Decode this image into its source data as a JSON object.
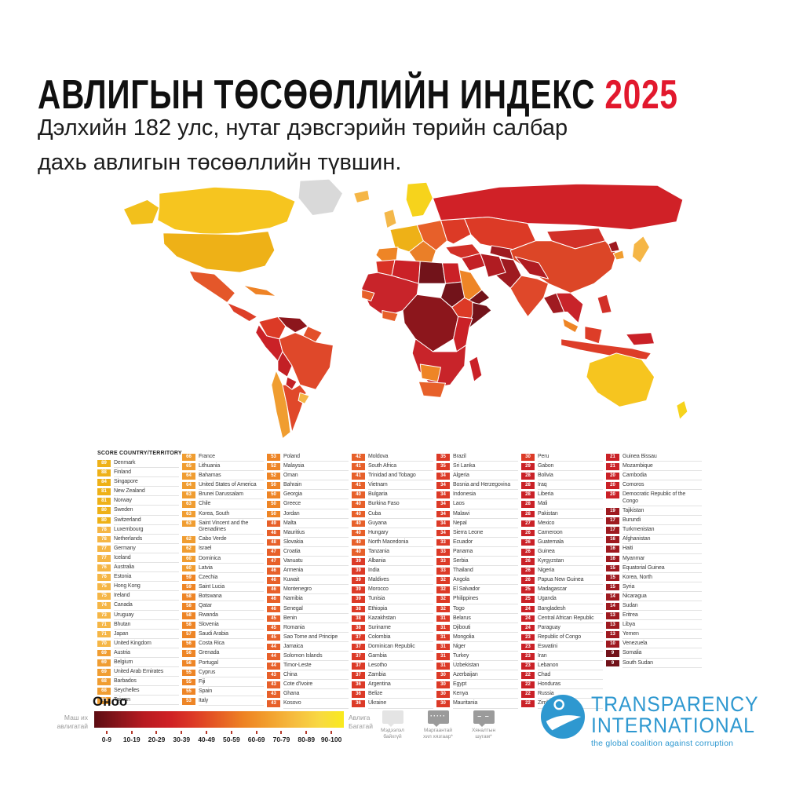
{
  "title": {
    "main": "АВЛИГЫН ТӨСӨӨЛЛИЙН ИНДЕКС",
    "year": "2025",
    "year_color": "#e2182d"
  },
  "subtitle": {
    "line1": "Дэлхийн 182 улс, нутаг дэвсгэрийн төрийн салбар",
    "line2": "дахь авлигын төсөөллийн түвшин."
  },
  "table": {
    "header": {
      "score": "SCORE",
      "country": "COUNTRY/TERRITORY"
    }
  },
  "chart_data": {
    "type": "table",
    "title": "АВЛИГЫН ТӨСӨӨЛЛИЙН ИНДЕКС 2025",
    "description": "Corruption Perceptions Index choropleth world map and score table, 182 countries, scale 0 (highly corrupt, dark red) to 100 (clean, yellow)",
    "score_range": [
      0,
      100
    ],
    "columns": [
      [
        {
          "s": 89,
          "c": "Denmark"
        },
        {
          "s": 88,
          "c": "Finland"
        },
        {
          "s": 84,
          "c": "Singapore"
        },
        {
          "s": 81,
          "c": "New Zealand"
        },
        {
          "s": 81,
          "c": "Norway"
        },
        {
          "s": 80,
          "c": "Sweden"
        },
        {
          "s": 80,
          "c": "Switzerland"
        },
        {
          "s": 78,
          "c": "Luxembourg"
        },
        {
          "s": 78,
          "c": "Netherlands"
        },
        {
          "s": 77,
          "c": "Germany"
        },
        {
          "s": 77,
          "c": "Iceland"
        },
        {
          "s": 76,
          "c": "Australia"
        },
        {
          "s": 76,
          "c": "Estonia"
        },
        {
          "s": 75,
          "c": "Hong Kong"
        },
        {
          "s": 75,
          "c": "Ireland"
        },
        {
          "s": 74,
          "c": "Canada"
        },
        {
          "s": 73,
          "c": "Uruguay"
        },
        {
          "s": 71,
          "c": "Bhutan"
        },
        {
          "s": 71,
          "c": "Japan"
        },
        {
          "s": 70,
          "c": "United Kingdom"
        },
        {
          "s": 69,
          "c": "Austria"
        },
        {
          "s": 69,
          "c": "Belgium"
        },
        {
          "s": 69,
          "c": "United Arab Emirates"
        },
        {
          "s": 68,
          "c": "Barbados"
        },
        {
          "s": 68,
          "c": "Seychelles"
        },
        {
          "s": 68,
          "c": "Taiwan"
        }
      ],
      [
        {
          "s": 66,
          "c": "France"
        },
        {
          "s": 65,
          "c": "Lithuania"
        },
        {
          "s": 64,
          "c": "Bahamas"
        },
        {
          "s": 64,
          "c": "United States of America"
        },
        {
          "s": 63,
          "c": "Brunei Darussalam"
        },
        {
          "s": 63,
          "c": "Chile"
        },
        {
          "s": 63,
          "c": "Korea, South"
        },
        {
          "s": 63,
          "c": "Saint Vincent and the Grenadines"
        },
        {
          "s": 62,
          "c": "Cabo Verde"
        },
        {
          "s": 62,
          "c": "Israel"
        },
        {
          "s": 60,
          "c": "Dominica"
        },
        {
          "s": 60,
          "c": "Latvia"
        },
        {
          "s": 59,
          "c": "Czechia"
        },
        {
          "s": 59,
          "c": "Saint Lucia"
        },
        {
          "s": 58,
          "c": "Botswana"
        },
        {
          "s": 58,
          "c": "Qatar"
        },
        {
          "s": 58,
          "c": "Rwanda"
        },
        {
          "s": 58,
          "c": "Slovenia"
        },
        {
          "s": 57,
          "c": "Saudi Arabia"
        },
        {
          "s": 56,
          "c": "Costa Rica"
        },
        {
          "s": 56,
          "c": "Grenada"
        },
        {
          "s": 56,
          "c": "Portugal"
        },
        {
          "s": 55,
          "c": "Cyprus"
        },
        {
          "s": 55,
          "c": "Fiji"
        },
        {
          "s": 55,
          "c": "Spain"
        },
        {
          "s": 53,
          "c": "Italy"
        }
      ],
      [
        {
          "s": 53,
          "c": "Poland"
        },
        {
          "s": 52,
          "c": "Malaysia"
        },
        {
          "s": 52,
          "c": "Oman"
        },
        {
          "s": 50,
          "c": "Bahrain"
        },
        {
          "s": 50,
          "c": "Georgia"
        },
        {
          "s": 50,
          "c": "Greece"
        },
        {
          "s": 50,
          "c": "Jordan"
        },
        {
          "s": 49,
          "c": "Malta"
        },
        {
          "s": 48,
          "c": "Mauritius"
        },
        {
          "s": 48,
          "c": "Slovakia"
        },
        {
          "s": 47,
          "c": "Croatia"
        },
        {
          "s": 47,
          "c": "Vanuatu"
        },
        {
          "s": 46,
          "c": "Armenia"
        },
        {
          "s": 46,
          "c": "Kuwait"
        },
        {
          "s": 46,
          "c": "Montenegro"
        },
        {
          "s": 46,
          "c": "Namibia"
        },
        {
          "s": 46,
          "c": "Senegal"
        },
        {
          "s": 45,
          "c": "Benin"
        },
        {
          "s": 45,
          "c": "Romania"
        },
        {
          "s": 45,
          "c": "Sao Tome and Principe"
        },
        {
          "s": 44,
          "c": "Jamaica"
        },
        {
          "s": 44,
          "c": "Solomon Islands"
        },
        {
          "s": 44,
          "c": "Timor-Leste"
        },
        {
          "s": 43,
          "c": "China"
        },
        {
          "s": 43,
          "c": "Cote d'Ivoire"
        },
        {
          "s": 43,
          "c": "Ghana"
        },
        {
          "s": 43,
          "c": "Kosovo"
        }
      ],
      [
        {
          "s": 42,
          "c": "Moldova"
        },
        {
          "s": 41,
          "c": "South Africa"
        },
        {
          "s": 41,
          "c": "Trinidad and Tobago"
        },
        {
          "s": 41,
          "c": "Vietnam"
        },
        {
          "s": 40,
          "c": "Bulgaria"
        },
        {
          "s": 40,
          "c": "Burkina Faso"
        },
        {
          "s": 40,
          "c": "Cuba"
        },
        {
          "s": 40,
          "c": "Guyana"
        },
        {
          "s": 40,
          "c": "Hungary"
        },
        {
          "s": 40,
          "c": "North Macedonia"
        },
        {
          "s": 40,
          "c": "Tanzania"
        },
        {
          "s": 39,
          "c": "Albania"
        },
        {
          "s": 39,
          "c": "India"
        },
        {
          "s": 39,
          "c": "Maldives"
        },
        {
          "s": 39,
          "c": "Morocco"
        },
        {
          "s": 39,
          "c": "Tunisia"
        },
        {
          "s": 38,
          "c": "Ethiopia"
        },
        {
          "s": 38,
          "c": "Kazakhstan"
        },
        {
          "s": 38,
          "c": "Suriname"
        },
        {
          "s": 37,
          "c": "Colombia"
        },
        {
          "s": 37,
          "c": "Dominican Republic"
        },
        {
          "s": 37,
          "c": "Gambia"
        },
        {
          "s": 37,
          "c": "Lesotho"
        },
        {
          "s": 37,
          "c": "Zambia"
        },
        {
          "s": 36,
          "c": "Argentina"
        },
        {
          "s": 36,
          "c": "Belize"
        },
        {
          "s": 36,
          "c": "Ukraine"
        }
      ],
      [
        {
          "s": 35,
          "c": "Brazil"
        },
        {
          "s": 35,
          "c": "Sri Lanka"
        },
        {
          "s": 34,
          "c": "Algeria"
        },
        {
          "s": 34,
          "c": "Bosnia and Herzegovina"
        },
        {
          "s": 34,
          "c": "Indonesia"
        },
        {
          "s": 34,
          "c": "Laos"
        },
        {
          "s": 34,
          "c": "Malawi"
        },
        {
          "s": 34,
          "c": "Nepal"
        },
        {
          "s": 34,
          "c": "Sierra Leone"
        },
        {
          "s": 33,
          "c": "Ecuador"
        },
        {
          "s": 33,
          "c": "Panama"
        },
        {
          "s": 33,
          "c": "Serbia"
        },
        {
          "s": 33,
          "c": "Thailand"
        },
        {
          "s": 32,
          "c": "Angola"
        },
        {
          "s": 32,
          "c": "El Salvador"
        },
        {
          "s": 32,
          "c": "Philippines"
        },
        {
          "s": 32,
          "c": "Togo"
        },
        {
          "s": 31,
          "c": "Belarus"
        },
        {
          "s": 31,
          "c": "Djibouti"
        },
        {
          "s": 31,
          "c": "Mongolia"
        },
        {
          "s": 31,
          "c": "Niger"
        },
        {
          "s": 31,
          "c": "Turkey"
        },
        {
          "s": 31,
          "c": "Uzbekistan"
        },
        {
          "s": 30,
          "c": "Azerbaijan"
        },
        {
          "s": 30,
          "c": "Egypt"
        },
        {
          "s": 30,
          "c": "Kenya"
        },
        {
          "s": 30,
          "c": "Mauritania"
        }
      ],
      [
        {
          "s": 30,
          "c": "Peru"
        },
        {
          "s": 29,
          "c": "Gabon"
        },
        {
          "s": 28,
          "c": "Bolivia"
        },
        {
          "s": 28,
          "c": "Iraq"
        },
        {
          "s": 28,
          "c": "Liberia"
        },
        {
          "s": 28,
          "c": "Mali"
        },
        {
          "s": 28,
          "c": "Pakistan"
        },
        {
          "s": 27,
          "c": "Mexico"
        },
        {
          "s": 26,
          "c": "Cameroon"
        },
        {
          "s": 26,
          "c": "Guatemala"
        },
        {
          "s": 26,
          "c": "Guinea"
        },
        {
          "s": 26,
          "c": "Kyrgyzstan"
        },
        {
          "s": 26,
          "c": "Nigeria"
        },
        {
          "s": 26,
          "c": "Papua New Guinea"
        },
        {
          "s": 25,
          "c": "Madagascar"
        },
        {
          "s": 25,
          "c": "Uganda"
        },
        {
          "s": 24,
          "c": "Bangladesh"
        },
        {
          "s": 24,
          "c": "Central African Republic"
        },
        {
          "s": 24,
          "c": "Paraguay"
        },
        {
          "s": 23,
          "c": "Republic of Congo"
        },
        {
          "s": 23,
          "c": "Eswatini"
        },
        {
          "s": 23,
          "c": "Iran"
        },
        {
          "s": 23,
          "c": "Lebanon"
        },
        {
          "s": 22,
          "c": "Chad"
        },
        {
          "s": 22,
          "c": "Honduras"
        },
        {
          "s": 22,
          "c": "Russia"
        },
        {
          "s": 22,
          "c": "Zimbabwe"
        }
      ],
      [
        {
          "s": 21,
          "c": "Guinea Bissau"
        },
        {
          "s": 21,
          "c": "Mozambique"
        },
        {
          "s": 20,
          "c": "Cambodia"
        },
        {
          "s": 20,
          "c": "Comoros"
        },
        {
          "s": 20,
          "c": "Democratic Republic of the Congo"
        },
        {
          "s": 19,
          "c": "Tajikistan"
        },
        {
          "s": 17,
          "c": "Burundi"
        },
        {
          "s": 17,
          "c": "Turkmenistan"
        },
        {
          "s": 16,
          "c": "Afghanistan"
        },
        {
          "s": 16,
          "c": "Haiti"
        },
        {
          "s": 16,
          "c": "Myanmar"
        },
        {
          "s": 15,
          "c": "Equatorial Guinea"
        },
        {
          "s": 15,
          "c": "Korea, North"
        },
        {
          "s": 15,
          "c": "Syria"
        },
        {
          "s": 14,
          "c": "Nicaragua"
        },
        {
          "s": 14,
          "c": "Sudan"
        },
        {
          "s": 13,
          "c": "Eritrea"
        },
        {
          "s": 13,
          "c": "Libya"
        },
        {
          "s": 13,
          "c": "Yemen"
        },
        {
          "s": 10,
          "c": "Venezuela"
        },
        {
          "s": 9,
          "c": "Somalia"
        },
        {
          "s": 9,
          "c": "South Sudan"
        }
      ]
    ]
  },
  "score_colors": {
    "0": "#72131a",
    "1": "#9e1a20",
    "2": "#ca2127",
    "3": "#dc3a27",
    "4": "#e7602a",
    "5": "#ee8526",
    "6": "#f09d31",
    "7": "#f5b646",
    "8": "#eeb117",
    "9": "#f7e017"
  },
  "legend": {
    "title": "Оноо",
    "left_label_1": "Маш их",
    "left_label_2": "авлигатай",
    "right_label_1": "Авлига",
    "right_label_2": "Багатай",
    "ticks": [
      "0-9",
      "10-19",
      "20-29",
      "30-39",
      "40-49",
      "50-59",
      "60-69",
      "70-79",
      "80-89",
      "90-100"
    ],
    "gradient": [
      "#5c0c12",
      "#8a151b",
      "#b81b21",
      "#ce2025",
      "#dd3a26",
      "#e65e24",
      "#ee8323",
      "#f2a02e",
      "#f6bc3f",
      "#f8d843",
      "#f9ea1d"
    ],
    "extras": [
      {
        "style": "plain",
        "glyph": "",
        "label": "Мэдээлэл байхгүй"
      },
      {
        "style": "dots",
        "glyph": "·····",
        "label": "Маргаантай хил хязгаар*"
      },
      {
        "style": "dashes",
        "glyph": "– –",
        "label": "Хяналтын шугам*"
      }
    ]
  },
  "logo": {
    "name1": "TRANSPARENCY",
    "name2": "INTERNATIONAL",
    "tagline": "the global coalition against corruption",
    "color": "#2e98d0"
  },
  "map": {
    "kind": "world choropleth",
    "no_data_color": "#d9d9d9",
    "region_colors": {
      "greenland": "#d9d9d9",
      "alaska": "#f2c01c",
      "canada": "#f6c51f",
      "usa": "#eeb117",
      "mexico": "#e4572a",
      "central_america": "#dd3f28",
      "caribbean": "#ee8326",
      "colombia": "#dc3a26",
      "venezuela": "#8c161c",
      "guyanas": "#e2502a",
      "brazil": "#df482a",
      "peru": "#ca2127",
      "bolivia": "#c32025",
      "chile": "#f09d30",
      "argentina": "#e0482a",
      "uruguay": "#f5b646",
      "paraguay": "#c32025",
      "iceland": "#f5b646",
      "uk": "#f4b84a",
      "scandinavia": "#f6d31c",
      "western_europe": "#eeb117",
      "iberia": "#ee8526",
      "italy_balkans": "#ea7f28",
      "eastern_europe": "#e7602a",
      "ukraine": "#dc3a26",
      "russia": "#d02127",
      "kazakhstan": "#dc3a26",
      "central_asia_dark": "#9e1a20",
      "mongolia": "#d23028",
      "china": "#dc4627",
      "china_west": "#b01c22",
      "korea_north": "#9e1a20",
      "korea_south": "#f09d30",
      "japan": "#f5b646",
      "afghanistan_pakistan": "#9e1a20",
      "india": "#df482a",
      "myanmar_bangladesh": "#a01b21",
      "southeast_asia": "#c8242a",
      "malaysia": "#ee8526",
      "indonesia": "#dd3d28",
      "borneo": "#dd3d28",
      "philippines": "#d23028",
      "turkey": "#d23028",
      "iran": "#b01c22",
      "iraq_syria": "#c32025",
      "saudi_arabia": "#ee8526",
      "yemen": "#72131a",
      "morocco": "#d93226",
      "algeria": "#ca2127",
      "libya": "#72131a",
      "egypt": "#ca2127",
      "west_africa": "#c8242a",
      "senegal": "#e7602a",
      "ghana_cotedivoire": "#e7602a",
      "sudan": "#72131a",
      "ethiopia": "#dc3a26",
      "somalia": "#72131a",
      "central_africa": "#8c161c",
      "east_africa": "#ca2127",
      "southern_africa": "#c8242a",
      "botswana_namibia": "#ee8526",
      "south_africa": "#e7602a",
      "madagascar": "#ca2127",
      "australia": "#f6c51f",
      "new_zealand": "#f6d31c",
      "papua_new_guinea": "#ca2127"
    }
  }
}
